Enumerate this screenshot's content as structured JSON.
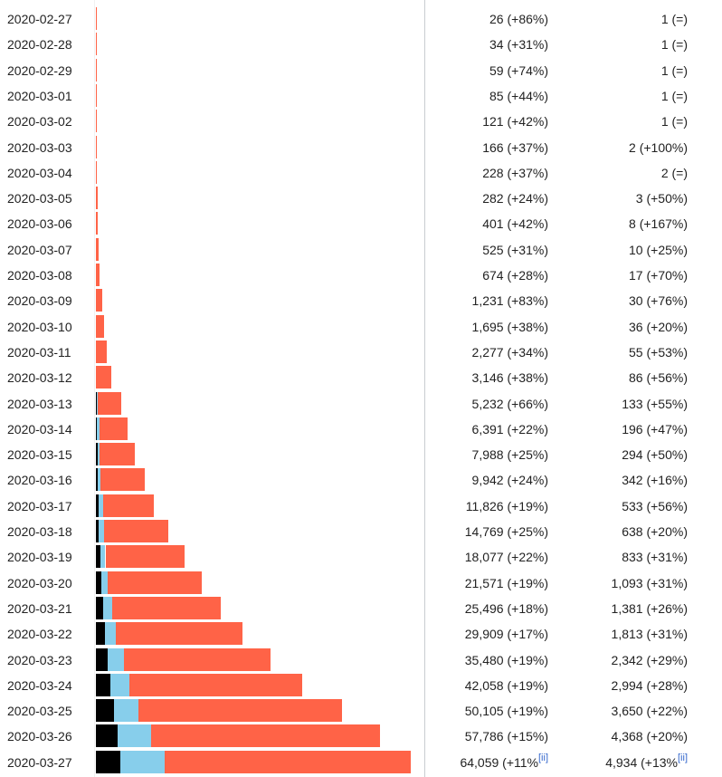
{
  "chart_data": {
    "type": "bar",
    "orientation": "horizontal-stacked",
    "colors": {
      "deaths": "#000000",
      "recoveries": "#87ceeb",
      "active": "#ff6347"
    },
    "rows": [
      {
        "date": "2020-02-27",
        "cases": "26 (+86%)",
        "deaths": "1 (=)",
        "d": 1,
        "r": 0,
        "total": 26
      },
      {
        "date": "2020-02-28",
        "cases": "34 (+31%)",
        "deaths": "1 (=)",
        "d": 1,
        "r": 0,
        "total": 34
      },
      {
        "date": "2020-02-29",
        "cases": "59 (+74%)",
        "deaths": "1 (=)",
        "d": 1,
        "r": 0,
        "total": 59
      },
      {
        "date": "2020-03-01",
        "cases": "85 (+44%)",
        "deaths": "1 (=)",
        "d": 1,
        "r": 0,
        "total": 85
      },
      {
        "date": "2020-03-02",
        "cases": "121 (+42%)",
        "deaths": "1 (=)",
        "d": 1,
        "r": 0,
        "total": 121
      },
      {
        "date": "2020-03-03",
        "cases": "166 (+37%)",
        "deaths": "2 (+100%)",
        "d": 2,
        "r": 0,
        "total": 166
      },
      {
        "date": "2020-03-04",
        "cases": "228 (+37%)",
        "deaths": "2 (=)",
        "d": 2,
        "r": 0,
        "total": 228
      },
      {
        "date": "2020-03-05",
        "cases": "282 (+24%)",
        "deaths": "3 (+50%)",
        "d": 3,
        "r": 0,
        "total": 282
      },
      {
        "date": "2020-03-06",
        "cases": "401 (+42%)",
        "deaths": "8 (+167%)",
        "d": 8,
        "r": 0,
        "total": 401
      },
      {
        "date": "2020-03-07",
        "cases": "525 (+31%)",
        "deaths": "10 (+25%)",
        "d": 10,
        "r": 0,
        "total": 525
      },
      {
        "date": "2020-03-08",
        "cases": "674 (+28%)",
        "deaths": "17 (+70%)",
        "d": 17,
        "r": 0,
        "total": 674
      },
      {
        "date": "2020-03-09",
        "cases": "1,231 (+83%)",
        "deaths": "30 (+76%)",
        "d": 30,
        "r": 0,
        "total": 1231
      },
      {
        "date": "2020-03-10",
        "cases": "1,695 (+38%)",
        "deaths": "36 (+20%)",
        "d": 36,
        "r": 0,
        "total": 1695
      },
      {
        "date": "2020-03-11",
        "cases": "2,277 (+34%)",
        "deaths": "55 (+53%)",
        "d": 55,
        "r": 0,
        "total": 2277
      },
      {
        "date": "2020-03-12",
        "cases": "3,146 (+38%)",
        "deaths": "86 (+56%)",
        "d": 86,
        "r": 0,
        "total": 3146
      },
      {
        "date": "2020-03-13",
        "cases": "5,232 (+66%)",
        "deaths": "133 (+55%)",
        "d": 133,
        "r": 200,
        "total": 5232
      },
      {
        "date": "2020-03-14",
        "cases": "6,391 (+22%)",
        "deaths": "196 (+47%)",
        "d": 196,
        "r": 500,
        "total": 6391
      },
      {
        "date": "2020-03-15",
        "cases": "7,988 (+25%)",
        "deaths": "294 (+50%)",
        "d": 294,
        "r": 500,
        "total": 7988
      },
      {
        "date": "2020-03-16",
        "cases": "9,942 (+24%)",
        "deaths": "342 (+16%)",
        "d": 342,
        "r": 600,
        "total": 9942
      },
      {
        "date": "2020-03-17",
        "cases": "11,826 (+19%)",
        "deaths": "533 (+56%)",
        "d": 533,
        "r": 1000,
        "total": 11826
      },
      {
        "date": "2020-03-18",
        "cases": "14,769 (+25%)",
        "deaths": "638 (+20%)",
        "d": 638,
        "r": 1100,
        "total": 14769
      },
      {
        "date": "2020-03-19",
        "cases": "18,077 (+22%)",
        "deaths": "833 (+31%)",
        "d": 833,
        "r": 1100,
        "total": 18077
      },
      {
        "date": "2020-03-20",
        "cases": "21,571 (+19%)",
        "deaths": "1,093 (+31%)",
        "d": 1093,
        "r": 1300,
        "total": 21571
      },
      {
        "date": "2020-03-21",
        "cases": "25,496 (+18%)",
        "deaths": "1,381 (+26%)",
        "d": 1381,
        "r": 2000,
        "total": 25496
      },
      {
        "date": "2020-03-22",
        "cases": "29,909 (+17%)",
        "deaths": "1,813 (+31%)",
        "d": 1813,
        "r": 2300,
        "total": 29909
      },
      {
        "date": "2020-03-23",
        "cases": "35,480 (+19%)",
        "deaths": "2,342 (+29%)",
        "d": 2342,
        "r": 3400,
        "total": 35480
      },
      {
        "date": "2020-03-24",
        "cases": "42,058 (+19%)",
        "deaths": "2,994 (+28%)",
        "d": 2994,
        "r": 3800,
        "total": 42058
      },
      {
        "date": "2020-03-25",
        "cases": "50,105 (+19%)",
        "deaths": "3,650 (+22%)",
        "d": 3650,
        "r": 5000,
        "total": 50105
      },
      {
        "date": "2020-03-26",
        "cases": "57,786 (+15%)",
        "deaths": "4,368 (+20%)",
        "d": 4368,
        "r": 6800,
        "total": 57786
      },
      {
        "date": "2020-03-27",
        "cases": "64,059 (+11%",
        "deaths": "4,934 (+13%",
        "d": 4934,
        "r": 9000,
        "total": 64059,
        "note": "[ii]"
      }
    ]
  }
}
